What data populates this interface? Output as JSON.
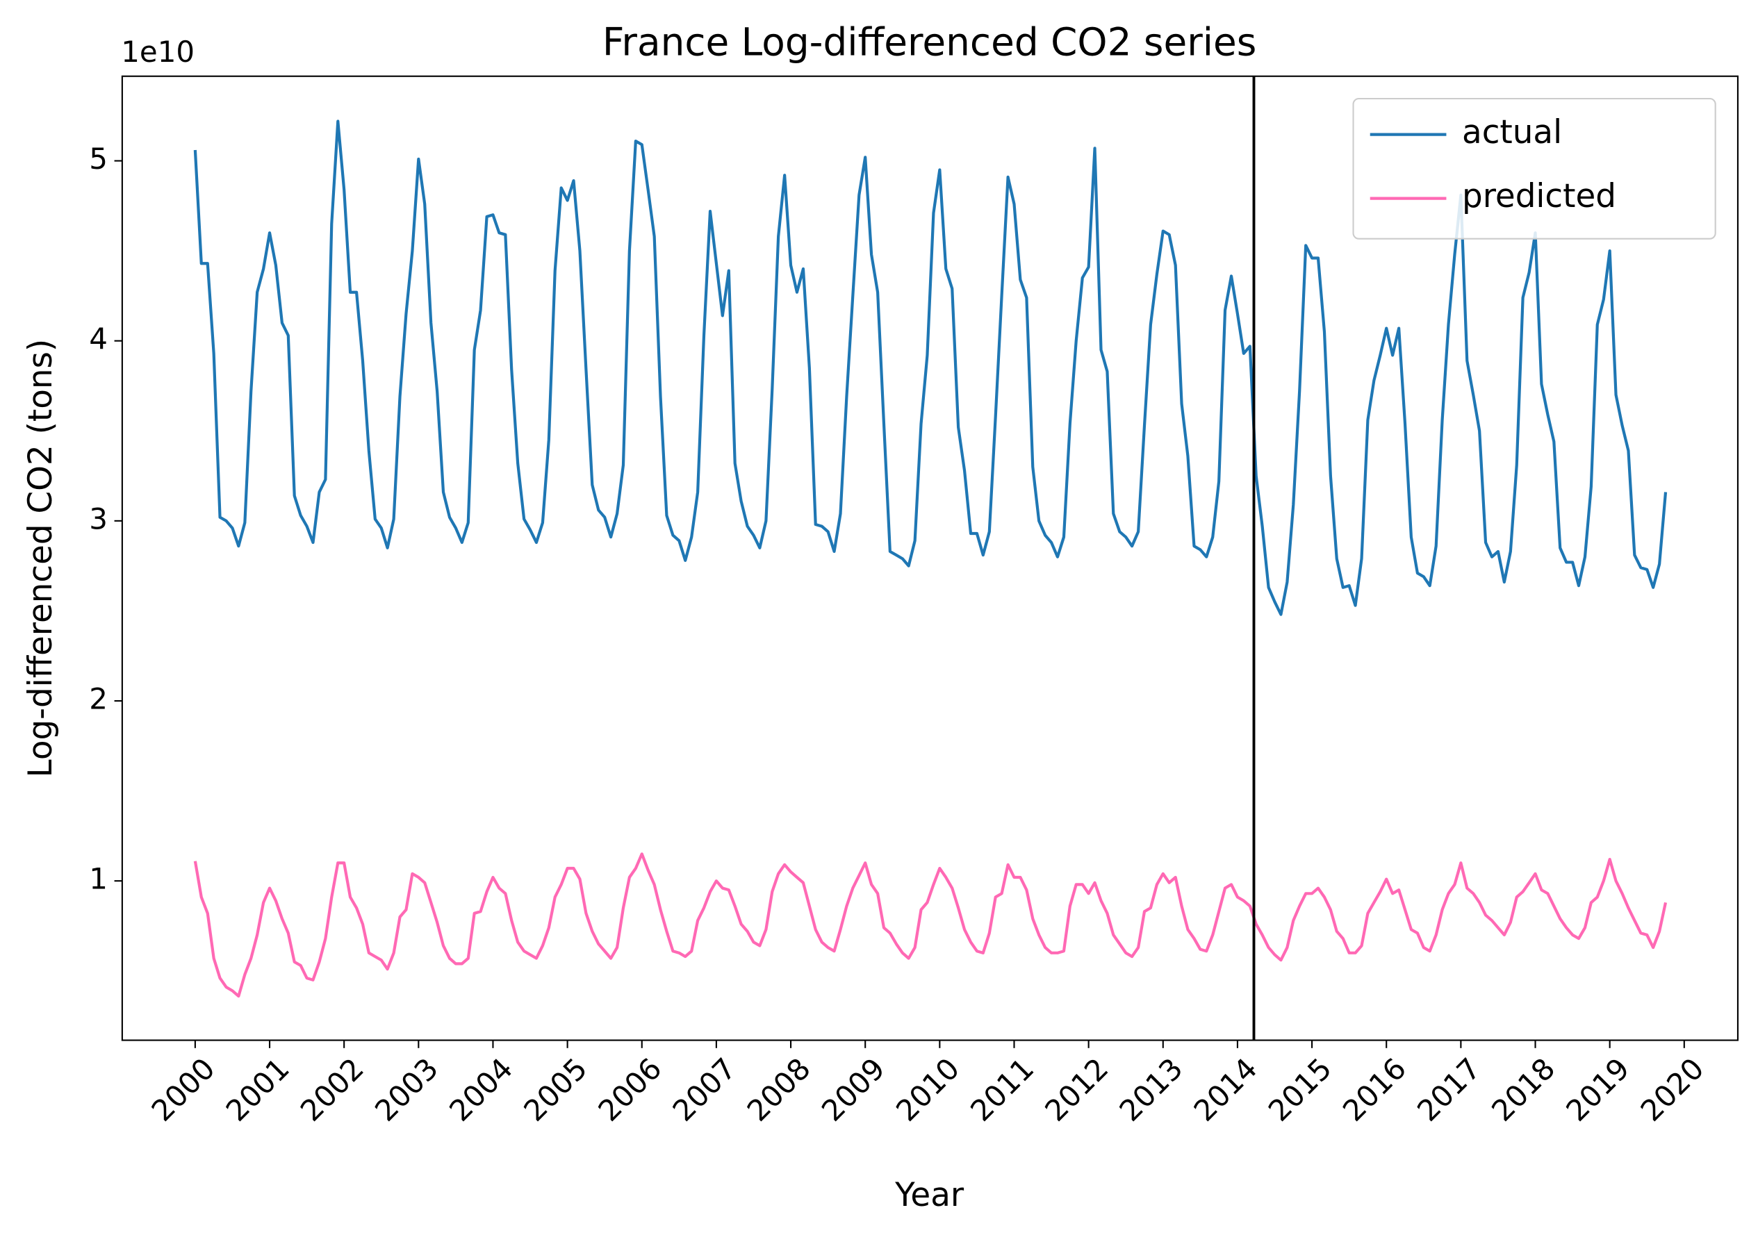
{
  "chart_data": {
    "type": "line",
    "title": "France Log-differenced CO2 series",
    "xlabel": "Year",
    "ylabel": "Log-differenced CO2 (tons)",
    "y_offset_label": "1e10",
    "xlim": [
      1999.02,
      2020.72
    ],
    "ylim": [
      1150000000.0,
      54700000000.0
    ],
    "xticks": [
      2000,
      2001,
      2002,
      2003,
      2004,
      2005,
      2006,
      2007,
      2008,
      2009,
      2010,
      2011,
      2012,
      2013,
      2014,
      2015,
      2016,
      2017,
      2018,
      2019,
      2020
    ],
    "yticks": [
      {
        "value": 10000000000.0,
        "label": "1"
      },
      {
        "value": 20000000000.0,
        "label": "2"
      },
      {
        "value": 30000000000.0,
        "label": "3"
      },
      {
        "value": 40000000000.0,
        "label": "4"
      },
      {
        "value": 50000000000.0,
        "label": "5"
      }
    ],
    "legend": "upper right",
    "vline": {
      "x": 2014.22,
      "color": "#000000"
    },
    "x": [
      2000,
      2000.083,
      2000.167,
      2000.25,
      2000.333,
      2000.417,
      2000.5,
      2000.583,
      2000.667,
      2000.75,
      2000.833,
      2000.917,
      2001,
      2001.083,
      2001.167,
      2001.25,
      2001.333,
      2001.417,
      2001.5,
      2001.583,
      2001.667,
      2001.75,
      2001.833,
      2001.917,
      2002,
      2002.083,
      2002.167,
      2002.25,
      2002.333,
      2002.417,
      2002.5,
      2002.583,
      2002.667,
      2002.75,
      2002.833,
      2002.917,
      2003,
      2003.083,
      2003.167,
      2003.25,
      2003.333,
      2003.417,
      2003.5,
      2003.583,
      2003.667,
      2003.75,
      2003.833,
      2003.917,
      2004,
      2004.083,
      2004.167,
      2004.25,
      2004.333,
      2004.417,
      2004.5,
      2004.583,
      2004.667,
      2004.75,
      2004.833,
      2004.917,
      2005,
      2005.083,
      2005.167,
      2005.25,
      2005.333,
      2005.417,
      2005.5,
      2005.583,
      2005.667,
      2005.75,
      2005.833,
      2005.917,
      2006,
      2006.083,
      2006.167,
      2006.25,
      2006.333,
      2006.417,
      2006.5,
      2006.583,
      2006.667,
      2006.75,
      2006.833,
      2006.917,
      2007,
      2007.083,
      2007.167,
      2007.25,
      2007.333,
      2007.417,
      2007.5,
      2007.583,
      2007.667,
      2007.75,
      2007.833,
      2007.917,
      2008,
      2008.083,
      2008.167,
      2008.25,
      2008.333,
      2008.417,
      2008.5,
      2008.583,
      2008.667,
      2008.75,
      2008.833,
      2008.917,
      2009,
      2009.083,
      2009.167,
      2009.25,
      2009.333,
      2009.417,
      2009.5,
      2009.583,
      2009.667,
      2009.75,
      2009.833,
      2009.917,
      2010,
      2010.083,
      2010.167,
      2010.25,
      2010.333,
      2010.417,
      2010.5,
      2010.583,
      2010.667,
      2010.75,
      2010.833,
      2010.917,
      2011,
      2011.083,
      2011.167,
      2011.25,
      2011.333,
      2011.417,
      2011.5,
      2011.583,
      2011.667,
      2011.75,
      2011.833,
      2011.917,
      2012,
      2012.083,
      2012.167,
      2012.25,
      2012.333,
      2012.417,
      2012.5,
      2012.583,
      2012.667,
      2012.75,
      2012.833,
      2012.917,
      2013,
      2013.083,
      2013.167,
      2013.25,
      2013.333,
      2013.417,
      2013.5,
      2013.583,
      2013.667,
      2013.75,
      2013.833,
      2013.917,
      2014,
      2014.083,
      2014.167,
      2014.25,
      2014.333,
      2014.417,
      2014.5,
      2014.583,
      2014.667,
      2014.75,
      2014.833,
      2014.917,
      2015,
      2015.083,
      2015.167,
      2015.25,
      2015.333,
      2015.417,
      2015.5,
      2015.583,
      2015.667,
      2015.75,
      2015.833,
      2015.917,
      2016,
      2016.083,
      2016.167,
      2016.25,
      2016.333,
      2016.417,
      2016.5,
      2016.583,
      2016.667,
      2016.75,
      2016.833,
      2016.917,
      2017,
      2017.083,
      2017.167,
      2017.25,
      2017.333,
      2017.417,
      2017.5,
      2017.583,
      2017.667,
      2017.75,
      2017.833,
      2017.917,
      2018,
      2018.083,
      2018.167,
      2018.25,
      2018.333,
      2018.417,
      2018.5,
      2018.583,
      2018.667,
      2018.75,
      2018.833,
      2018.917,
      2019,
      2019.083,
      2019.167,
      2019.25,
      2019.333,
      2019.417,
      2019.5,
      2019.583,
      2019.667,
      2019.75
    ],
    "series": [
      {
        "name": "actual",
        "color": "#1f77b4",
        "values": [
          50600000000.0,
          44300000000.0,
          44300000000.0,
          39300000000.0,
          30200000000.0,
          30000000000.0,
          29600000000.0,
          28600000000.0,
          29900000000.0,
          37200000000.0,
          42700000000.0,
          44000000000.0,
          46000000000.0,
          44200000000.0,
          41000000000.0,
          40300000000.0,
          31400000000.0,
          30300000000.0,
          29700000000.0,
          28800000000.0,
          31600000000.0,
          32300000000.0,
          46500000000.0,
          52200000000.0,
          48400000000.0,
          42700000000.0,
          42700000000.0,
          38900000000.0,
          33900000000.0,
          30100000000.0,
          29600000000.0,
          28500000000.0,
          30100000000.0,
          36900000000.0,
          41500000000.0,
          45000000000.0,
          50100000000.0,
          47600000000.0,
          41000000000.0,
          37200000000.0,
          31600000000.0,
          30200000000.0,
          29600000000.0,
          28800000000.0,
          29900000000.0,
          39500000000.0,
          41700000000.0,
          46900000000.0,
          47000000000.0,
          46000000000.0,
          45900000000.0,
          38400000000.0,
          33200000000.0,
          30100000000.0,
          29500000000.0,
          28800000000.0,
          29900000000.0,
          34500000000.0,
          43900000000.0,
          48500000000.0,
          47800000000.0,
          48900000000.0,
          45000000000.0,
          38400000000.0,
          32000000000.0,
          30600000000.0,
          30200000000.0,
          29100000000.0,
          30400000000.0,
          33100000000.0,
          45000000000.0,
          51100000000.0,
          50900000000.0,
          48400000000.0,
          45800000000.0,
          36900000000.0,
          30300000000.0,
          29200000000.0,
          28900000000.0,
          27800000000.0,
          29100000000.0,
          31600000000.0,
          40300000000.0,
          47200000000.0,
          44300000000.0,
          41400000000.0,
          43900000000.0,
          33200000000.0,
          31100000000.0,
          29700000000.0,
          29200000000.0,
          28500000000.0,
          30000000000.0,
          37300000000.0,
          45800000000.0,
          49200000000.0,
          44200000000.0,
          42700000000.0,
          44000000000.0,
          38500000000.0,
          29800000000.0,
          29700000000.0,
          29400000000.0,
          28300000000.0,
          30400000000.0,
          36900000000.0,
          42500000000.0,
          48100000000.0,
          50200000000.0,
          44800000000.0,
          42700000000.0,
          35400000000.0,
          28300000000.0,
          28100000000.0,
          27900000000.0,
          27500000000.0,
          28900000000.0,
          35400000000.0,
          39200000000.0,
          47100000000.0,
          49500000000.0,
          44000000000.0,
          42900000000.0,
          35200000000.0,
          32800000000.0,
          29300000000.0,
          29300000000.0,
          28100000000.0,
          29400000000.0,
          35800000000.0,
          42500000000.0,
          49100000000.0,
          47600000000.0,
          43400000000.0,
          42400000000.0,
          33000000000.0,
          30000000000.0,
          29200000000.0,
          28800000000.0,
          28000000000.0,
          29100000000.0,
          35400000000.0,
          40000000000.0,
          43500000000.0,
          44100000000.0,
          50700000000.0,
          39500000000.0,
          38300000000.0,
          30400000000.0,
          29400000000.0,
          29100000000.0,
          28600000000.0,
          29400000000.0,
          35300000000.0,
          40900000000.0,
          43700000000.0,
          46100000000.0,
          45900000000.0,
          44200000000.0,
          36500000000.0,
          33600000000.0,
          28600000000.0,
          28400000000.0,
          28000000000.0,
          29100000000.0,
          32200000000.0,
          41700000000.0,
          43600000000.0,
          41500000000.0,
          39300000000.0,
          39700000000.0,
          32500000000.0,
          29700000000.0,
          26300000000.0,
          25500000000.0,
          24800000000.0,
          26600000000.0,
          30900000000.0,
          37200000000.0,
          45300000000.0,
          44600000000.0,
          44600000000.0,
          40500000000.0,
          32500000000.0,
          27900000000.0,
          26300000000.0,
          26400000000.0,
          25300000000.0,
          27900000000.0,
          35600000000.0,
          37800000000.0,
          39200000000.0,
          40700000000.0,
          39200000000.0,
          40700000000.0,
          35400000000.0,
          29100000000.0,
          27100000000.0,
          26900000000.0,
          26400000000.0,
          28600000000.0,
          35600000000.0,
          40900000000.0,
          44800000000.0,
          48100000000.0,
          38900000000.0,
          37000000000.0,
          35000000000.0,
          28800000000.0,
          28000000000.0,
          28300000000.0,
          26600000000.0,
          28300000000.0,
          33100000000.0,
          42400000000.0,
          43800000000.0,
          46000000000.0,
          37600000000.0,
          35900000000.0,
          34400000000.0,
          28500000000.0,
          27700000000.0,
          27700000000.0,
          26400000000.0,
          28000000000.0,
          31900000000.0,
          40900000000.0,
          42300000000.0,
          45000000000.0,
          37000000000.0,
          35300000000.0,
          33900000000.0,
          28100000000.0,
          27400000000.0,
          27300000000.0,
          26300000000.0,
          27600000000.0,
          31600000000.0
        ]
      },
      {
        "name": "predicted",
        "color": "#ff69b4",
        "values": [
          11100000000.0,
          9100000000.0,
          8200000000.0,
          5700000000.0,
          4600000000.0,
          4100000000.0,
          3900000000.0,
          3600000000.0,
          4800000000.0,
          5700000000.0,
          7000000000.0,
          8800000000.0,
          9600000000.0,
          8900000000.0,
          7900000000.0,
          7100000000.0,
          5500000000.0,
          5300000000.0,
          4600000000.0,
          4500000000.0,
          5500000000.0,
          6800000000.0,
          9100000000.0,
          11000000000.0,
          11000000000.0,
          9100000000.0,
          8500000000.0,
          7600000000.0,
          6000000000.0,
          5800000000.0,
          5600000000.0,
          5100000000.0,
          6000000000.0,
          8000000000.0,
          8400000000.0,
          10400000000.0,
          10200000000.0,
          9900000000.0,
          8800000000.0,
          7700000000.0,
          6400000000.0,
          5700000000.0,
          5400000000.0,
          5400000000.0,
          5700000000.0,
          8200000000.0,
          8300000000.0,
          9400000000.0,
          10200000000.0,
          9600000000.0,
          9300000000.0,
          7800000000.0,
          6600000000.0,
          6100000000.0,
          5900000000.0,
          5700000000.0,
          6400000000.0,
          7400000000.0,
          9100000000.0,
          9800000000.0,
          10700000000.0,
          10700000000.0,
          10100000000.0,
          8200000000.0,
          7200000000.0,
          6500000000.0,
          6100000000.0,
          5700000000.0,
          6300000000.0,
          8500000000.0,
          10200000000.0,
          10700000000.0,
          11500000000.0,
          10600000000.0,
          9800000000.0,
          8400000000.0,
          7200000000.0,
          6100000000.0,
          6000000000.0,
          5800000000.0,
          6100000000.0,
          7800000000.0,
          8500000000.0,
          9400000000.0,
          10000000000.0,
          9600000000.0,
          9500000000.0,
          8600000000.0,
          7600000000.0,
          7200000000.0,
          6600000000.0,
          6400000000.0,
          7300000000.0,
          9400000000.0,
          10400000000.0,
          10900000000.0,
          10500000000.0,
          10200000000.0,
          9900000000.0,
          8600000000.0,
          7300000000.0,
          6600000000.0,
          6300000000.0,
          6100000000.0,
          7300000000.0,
          8600000000.0,
          9600000000.0,
          10300000000.0,
          11000000000.0,
          9800000000.0,
          9300000000.0,
          7400000000.0,
          7100000000.0,
          6500000000.0,
          6000000000.0,
          5700000000.0,
          6300000000.0,
          8400000000.0,
          8800000000.0,
          9800000000.0,
          10700000000.0,
          10200000000.0,
          9600000000.0,
          8500000000.0,
          7300000000.0,
          6600000000.0,
          6100000000.0,
          6000000000.0,
          7100000000.0,
          9100000000.0,
          9300000000.0,
          10900000000.0,
          10200000000.0,
          10200000000.0,
          9500000000.0,
          7900000000.0,
          7000000000.0,
          6300000000.0,
          6000000000.0,
          6000000000.0,
          6100000000.0,
          8600000000.0,
          9800000000.0,
          9800000000.0,
          9300000000.0,
          9900000000.0,
          8900000000.0,
          8200000000.0,
          7000000000.0,
          6500000000.0,
          6000000000.0,
          5800000000.0,
          6300000000.0,
          8300000000.0,
          8500000000.0,
          9800000000.0,
          10400000000.0,
          9900000000.0,
          10200000000.0,
          8600000000.0,
          7300000000.0,
          6800000000.0,
          6200000000.0,
          6100000000.0,
          7000000000.0,
          8300000000.0,
          9600000000.0,
          9800000000.0,
          9100000000.0,
          8900000000.0,
          8600000000.0,
          7600000000.0,
          7000000000.0,
          6300000000.0,
          5900000000.0,
          5600000000.0,
          6300000000.0,
          7800000000.0,
          8600000000.0,
          9300000000.0,
          9300000000.0,
          9600000000.0,
          9100000000.0,
          8400000000.0,
          7200000000.0,
          6800000000.0,
          6000000000.0,
          6000000000.0,
          6400000000.0,
          8200000000.0,
          8800000000.0,
          9400000000.0,
          10100000000.0,
          9300000000.0,
          9500000000.0,
          8400000000.0,
          7300000000.0,
          7100000000.0,
          6300000000.0,
          6100000000.0,
          7000000000.0,
          8400000000.0,
          9300000000.0,
          9800000000.0,
          11000000000.0,
          9600000000.0,
          9300000000.0,
          8800000000.0,
          8100000000.0,
          7800000000.0,
          7400000000.0,
          7000000000.0,
          7700000000.0,
          9100000000.0,
          9400000000.0,
          9900000000.0,
          10400000000.0,
          9500000000.0,
          9300000000.0,
          8600000000.0,
          7900000000.0,
          7400000000.0,
          7000000000.0,
          6800000000.0,
          7400000000.0,
          8800000000.0,
          9100000000.0,
          10000000000.0,
          11200000000.0,
          10000000000.0,
          9300000000.0,
          8500000000.0,
          7800000000.0,
          7100000000.0,
          7000000000.0,
          6300000000.0,
          7200000000.0,
          8800000000.0
        ]
      }
    ]
  }
}
